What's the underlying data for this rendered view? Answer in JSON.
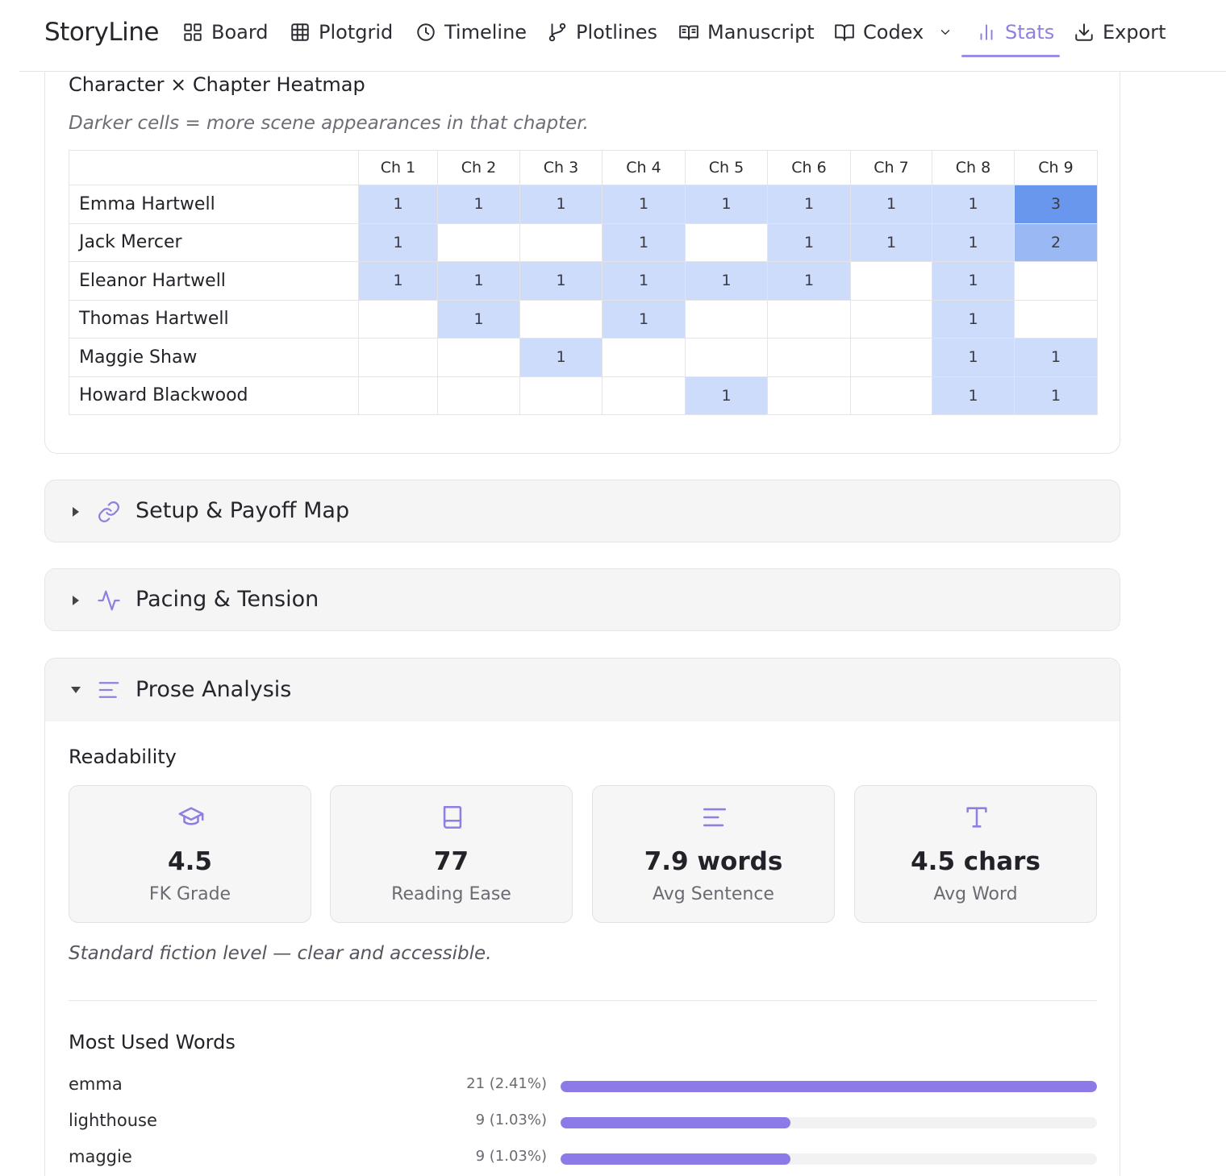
{
  "brand": "StoryLine",
  "nav": [
    {
      "label": "Board",
      "icon": "grid-icon"
    },
    {
      "label": "Plotgrid",
      "icon": "table-icon"
    },
    {
      "label": "Timeline",
      "icon": "clock-icon"
    },
    {
      "label": "Plotlines",
      "icon": "git-branch-icon"
    },
    {
      "label": "Manuscript",
      "icon": "book-open-icon"
    },
    {
      "label": "Codex",
      "icon": "book-icon"
    },
    {
      "label": "Stats",
      "icon": "bar-chart-icon",
      "active": true
    },
    {
      "label": "Export",
      "icon": "download-icon"
    }
  ],
  "heatmap": {
    "title": "Character × Chapter Heatmap",
    "subtitle": "Darker cells = more scene appearances in that chapter.",
    "chapters": [
      "Ch 1",
      "Ch 2",
      "Ch 3",
      "Ch 4",
      "Ch 5",
      "Ch 6",
      "Ch 7",
      "Ch 8",
      "Ch 9"
    ],
    "rows": [
      {
        "name": "Emma Hartwell",
        "values": [
          1,
          1,
          1,
          1,
          1,
          1,
          1,
          1,
          3
        ]
      },
      {
        "name": "Jack Mercer",
        "values": [
          1,
          0,
          0,
          1,
          0,
          1,
          1,
          1,
          2
        ]
      },
      {
        "name": "Eleanor Hartwell",
        "values": [
          1,
          1,
          1,
          1,
          1,
          1,
          0,
          1,
          0
        ]
      },
      {
        "name": "Thomas Hartwell",
        "values": [
          0,
          1,
          0,
          1,
          0,
          0,
          0,
          1,
          0
        ]
      },
      {
        "name": "Maggie Shaw",
        "values": [
          0,
          0,
          1,
          0,
          0,
          0,
          0,
          1,
          1
        ]
      },
      {
        "name": "Howard Blackwood",
        "values": [
          0,
          0,
          0,
          0,
          1,
          0,
          0,
          1,
          1
        ]
      }
    ],
    "colors": {
      "1": "#cddcfa",
      "2": "#9ab9f4",
      "3": "#6a97ee"
    }
  },
  "sections": {
    "setup_payoff": "Setup & Payoff Map",
    "pacing": "Pacing & Tension",
    "prose": "Prose Analysis"
  },
  "readability": {
    "title": "Readability",
    "metrics": [
      {
        "value": "4.5",
        "label": "FK Grade",
        "icon": "graduation-cap-icon"
      },
      {
        "value": "77",
        "label": "Reading Ease",
        "icon": "book-icon"
      },
      {
        "value": "7.9 words",
        "label": "Avg Sentence",
        "icon": "align-left-icon"
      },
      {
        "value": "4.5 chars",
        "label": "Avg Word",
        "icon": "type-icon"
      }
    ],
    "note": "Standard fiction level — clear and accessible."
  },
  "words": {
    "title": "Most Used Words",
    "items": [
      {
        "word": "emma",
        "count": "21 (2.41%)",
        "value": 21
      },
      {
        "word": "lighthouse",
        "count": "9 (1.03%)",
        "value": 9
      },
      {
        "word": "maggie",
        "count": "9 (1.03%)",
        "value": 9
      }
    ],
    "max": 21,
    "bar_color": "#8e7ae6"
  }
}
